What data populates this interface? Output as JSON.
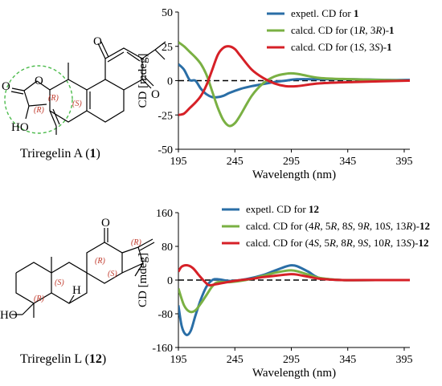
{
  "colors": {
    "blue": "#2a6ea6",
    "green": "#7ab043",
    "red": "#d62027",
    "stereo": "#c0392b",
    "circle": "#4cbb4c"
  },
  "structures": [
    {
      "caption_prefix": "Triregelin A (",
      "caption_number": "1",
      "caption_suffix": ")",
      "atoms": {
        "o1": "O",
        "o2": "O",
        "o3": "O",
        "o4": "O",
        "ho": "HO"
      },
      "stereo_labels": [
        "(R)",
        "(R)",
        "(S)"
      ]
    },
    {
      "caption_prefix": "Triregelin L (",
      "caption_number": "12",
      "caption_suffix": ")",
      "atoms": {
        "o1": "O",
        "ho": "HO",
        "h1": "H"
      },
      "stereo_labels": [
        "(R)",
        "(R)",
        "(S)",
        "(S)",
        "(R)"
      ]
    }
  ],
  "chart_data": [
    {
      "type": "line",
      "title": "",
      "xlabel": "Wavelength (nm)",
      "ylabel": "CD [mdeg]",
      "xlim": [
        195,
        400
      ],
      "ylim": [
        -50,
        50
      ],
      "xticks": [
        195,
        245,
        295,
        345,
        395
      ],
      "yticks": [
        50,
        25,
        0,
        -25,
        -50
      ],
      "zero_line": "dashed",
      "grid": false,
      "legend_position": "top-right",
      "series": [
        {
          "label_parts": [
            {
              "t": "expetl. CD for "
            },
            {
              "t": "1",
              "b": true
            }
          ],
          "color": "#2a6ea6",
          "x": [
            195,
            200,
            205,
            210,
            215,
            220,
            225,
            230,
            235,
            240,
            250,
            260,
            270,
            280,
            290,
            300,
            320,
            350,
            380,
            400
          ],
          "y": [
            12,
            8,
            0.5,
            0,
            -6,
            -10,
            -12,
            -12,
            -11,
            -9,
            -6,
            -4,
            -2.5,
            -1,
            0,
            1,
            1,
            1,
            0.5,
            0.5
          ]
        },
        {
          "label_parts": [
            {
              "t": "calcd. CD for (1"
            },
            {
              "t": "R",
              "i": true
            },
            {
              "t": ", 3"
            },
            {
              "t": "R",
              "i": true
            },
            {
              "t": ")-"
            },
            {
              "t": "1",
              "b": true
            }
          ],
          "color": "#7ab043",
          "x": [
            195,
            200,
            205,
            210,
            215,
            220,
            225,
            230,
            235,
            240,
            245,
            250,
            260,
            270,
            280,
            290,
            300,
            320,
            350,
            400
          ],
          "y": [
            28,
            25,
            21,
            17,
            12,
            4,
            -8,
            -20,
            -29,
            -33,
            -31,
            -25,
            -11,
            -2,
            3,
            5,
            5,
            2,
            1,
            0
          ]
        },
        {
          "label_parts": [
            {
              "t": "calcd. CD for (1"
            },
            {
              "t": "S",
              "i": true
            },
            {
              "t": ", 3"
            },
            {
              "t": "S",
              "i": true
            },
            {
              "t": ")-"
            },
            {
              "t": "1",
              "b": true
            }
          ],
          "color": "#d62027",
          "x": [
            195,
            200,
            205,
            210,
            215,
            220,
            225,
            230,
            235,
            240,
            245,
            250,
            260,
            270,
            280,
            290,
            300,
            320,
            350,
            400
          ],
          "y": [
            -25,
            -24,
            -20,
            -16,
            -11,
            -3,
            8,
            19,
            24,
            25,
            23,
            18,
            8,
            2,
            -2,
            -4,
            -4,
            -2,
            -1,
            0
          ]
        }
      ]
    },
    {
      "type": "line",
      "title": "",
      "xlabel": "Wavelength (nm)",
      "ylabel": "CD [mdeg]",
      "xlim": [
        195,
        400
      ],
      "ylim": [
        -160,
        160
      ],
      "xticks": [
        195,
        245,
        295,
        345,
        395
      ],
      "yticks": [
        160,
        80,
        0,
        -80,
        -160
      ],
      "zero_line": "dashed",
      "grid": false,
      "legend_position": "top-right",
      "series": [
        {
          "label_parts": [
            {
              "t": "expetl. CD for "
            },
            {
              "t": "12",
              "b": true
            }
          ],
          "color": "#2a6ea6",
          "x": [
            195,
            198,
            202,
            206,
            210,
            215,
            220,
            225,
            230,
            240,
            250,
            260,
            270,
            280,
            290,
            295,
            300,
            310,
            320,
            340,
            370,
            400
          ],
          "y": [
            -60,
            -110,
            -130,
            -120,
            -85,
            -45,
            -15,
            0,
            2,
            -2,
            0,
            5,
            12,
            22,
            32,
            35,
            33,
            20,
            5,
            0,
            0,
            0
          ]
        },
        {
          "label_parts": [
            {
              "t": "calcd. CD for (4"
            },
            {
              "t": "R",
              "i": true
            },
            {
              "t": ", 5"
            },
            {
              "t": "R",
              "i": true
            },
            {
              "t": ", 8"
            },
            {
              "t": "S",
              "i": true
            },
            {
              "t": ", 9"
            },
            {
              "t": "R",
              "i": true
            },
            {
              "t": ", 10"
            },
            {
              "t": "S",
              "i": true
            },
            {
              "t": ", 13"
            },
            {
              "t": "R",
              "i": true
            },
            {
              "t": ")-"
            },
            {
              "t": "12",
              "b": true
            }
          ],
          "color": "#7ab043",
          "x": [
            195,
            200,
            205,
            210,
            215,
            220,
            225,
            230,
            240,
            250,
            260,
            270,
            280,
            290,
            295,
            300,
            310,
            320,
            340,
            370,
            400
          ],
          "y": [
            -20,
            -60,
            -75,
            -72,
            -55,
            -35,
            -15,
            -5,
            -5,
            -2,
            3,
            10,
            17,
            22,
            23,
            21,
            13,
            5,
            0,
            0,
            0
          ]
        },
        {
          "label_parts": [
            {
              "t": "calcd. CD for (4"
            },
            {
              "t": "S",
              "i": true
            },
            {
              "t": ", 5"
            },
            {
              "t": "R",
              "i": true
            },
            {
              "t": ", 8"
            },
            {
              "t": "R",
              "i": true
            },
            {
              "t": ", 9"
            },
            {
              "t": "S",
              "i": true
            },
            {
              "t": ", 10"
            },
            {
              "t": "R",
              "i": true
            },
            {
              "t": ", 13"
            },
            {
              "t": "S",
              "i": true
            },
            {
              "t": ")-"
            },
            {
              "t": "12",
              "b": true
            }
          ],
          "color": "#d62027",
          "x": [
            195,
            198,
            203,
            208,
            213,
            218,
            222,
            228,
            240,
            250,
            260,
            270,
            280,
            290,
            295,
            300,
            310,
            320,
            340,
            370,
            400
          ],
          "y": [
            20,
            32,
            35,
            28,
            12,
            -3,
            -12,
            -10,
            -4,
            0,
            3,
            7,
            10,
            13,
            14,
            13,
            8,
            3,
            0,
            0,
            0
          ]
        }
      ]
    }
  ]
}
